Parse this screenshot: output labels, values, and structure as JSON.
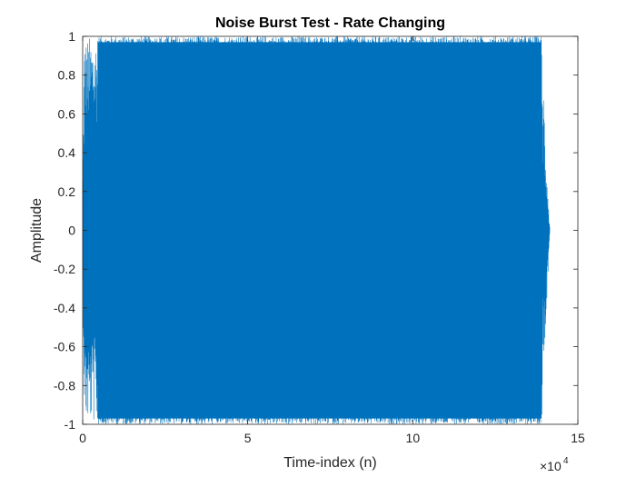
{
  "chart_data": {
    "type": "line",
    "title": "Noise Burst Test - Rate Changing",
    "xlabel": "Time-index (n)",
    "ylabel": "Amplitude",
    "x_exponent_base": "×10",
    "x_exponent_power": "4",
    "xlim": [
      0,
      150000
    ],
    "ylim": [
      -1,
      1
    ],
    "x_ticks": [
      0,
      50000,
      100000,
      150000
    ],
    "x_tick_labels": [
      "0",
      "5",
      "10",
      "15"
    ],
    "y_ticks": [
      -1,
      -0.8,
      -0.6,
      -0.4,
      -0.2,
      0,
      0.2,
      0.4,
      0.6,
      0.8,
      1
    ],
    "y_tick_labels": [
      "-1",
      "-0.8",
      "-0.6",
      "-0.4",
      "-0.2",
      "0",
      "0.2",
      "0.4",
      "0.6",
      "0.8",
      "1"
    ],
    "grid": false,
    "box": true,
    "series": [
      {
        "color": "#0072bd",
        "x_start": 0,
        "x_end": 141500,
        "peak_amplitude": 1.0,
        "description_values": {
          "dense_region_start": 4500,
          "dense_region_end": 139000
        }
      }
    ]
  }
}
